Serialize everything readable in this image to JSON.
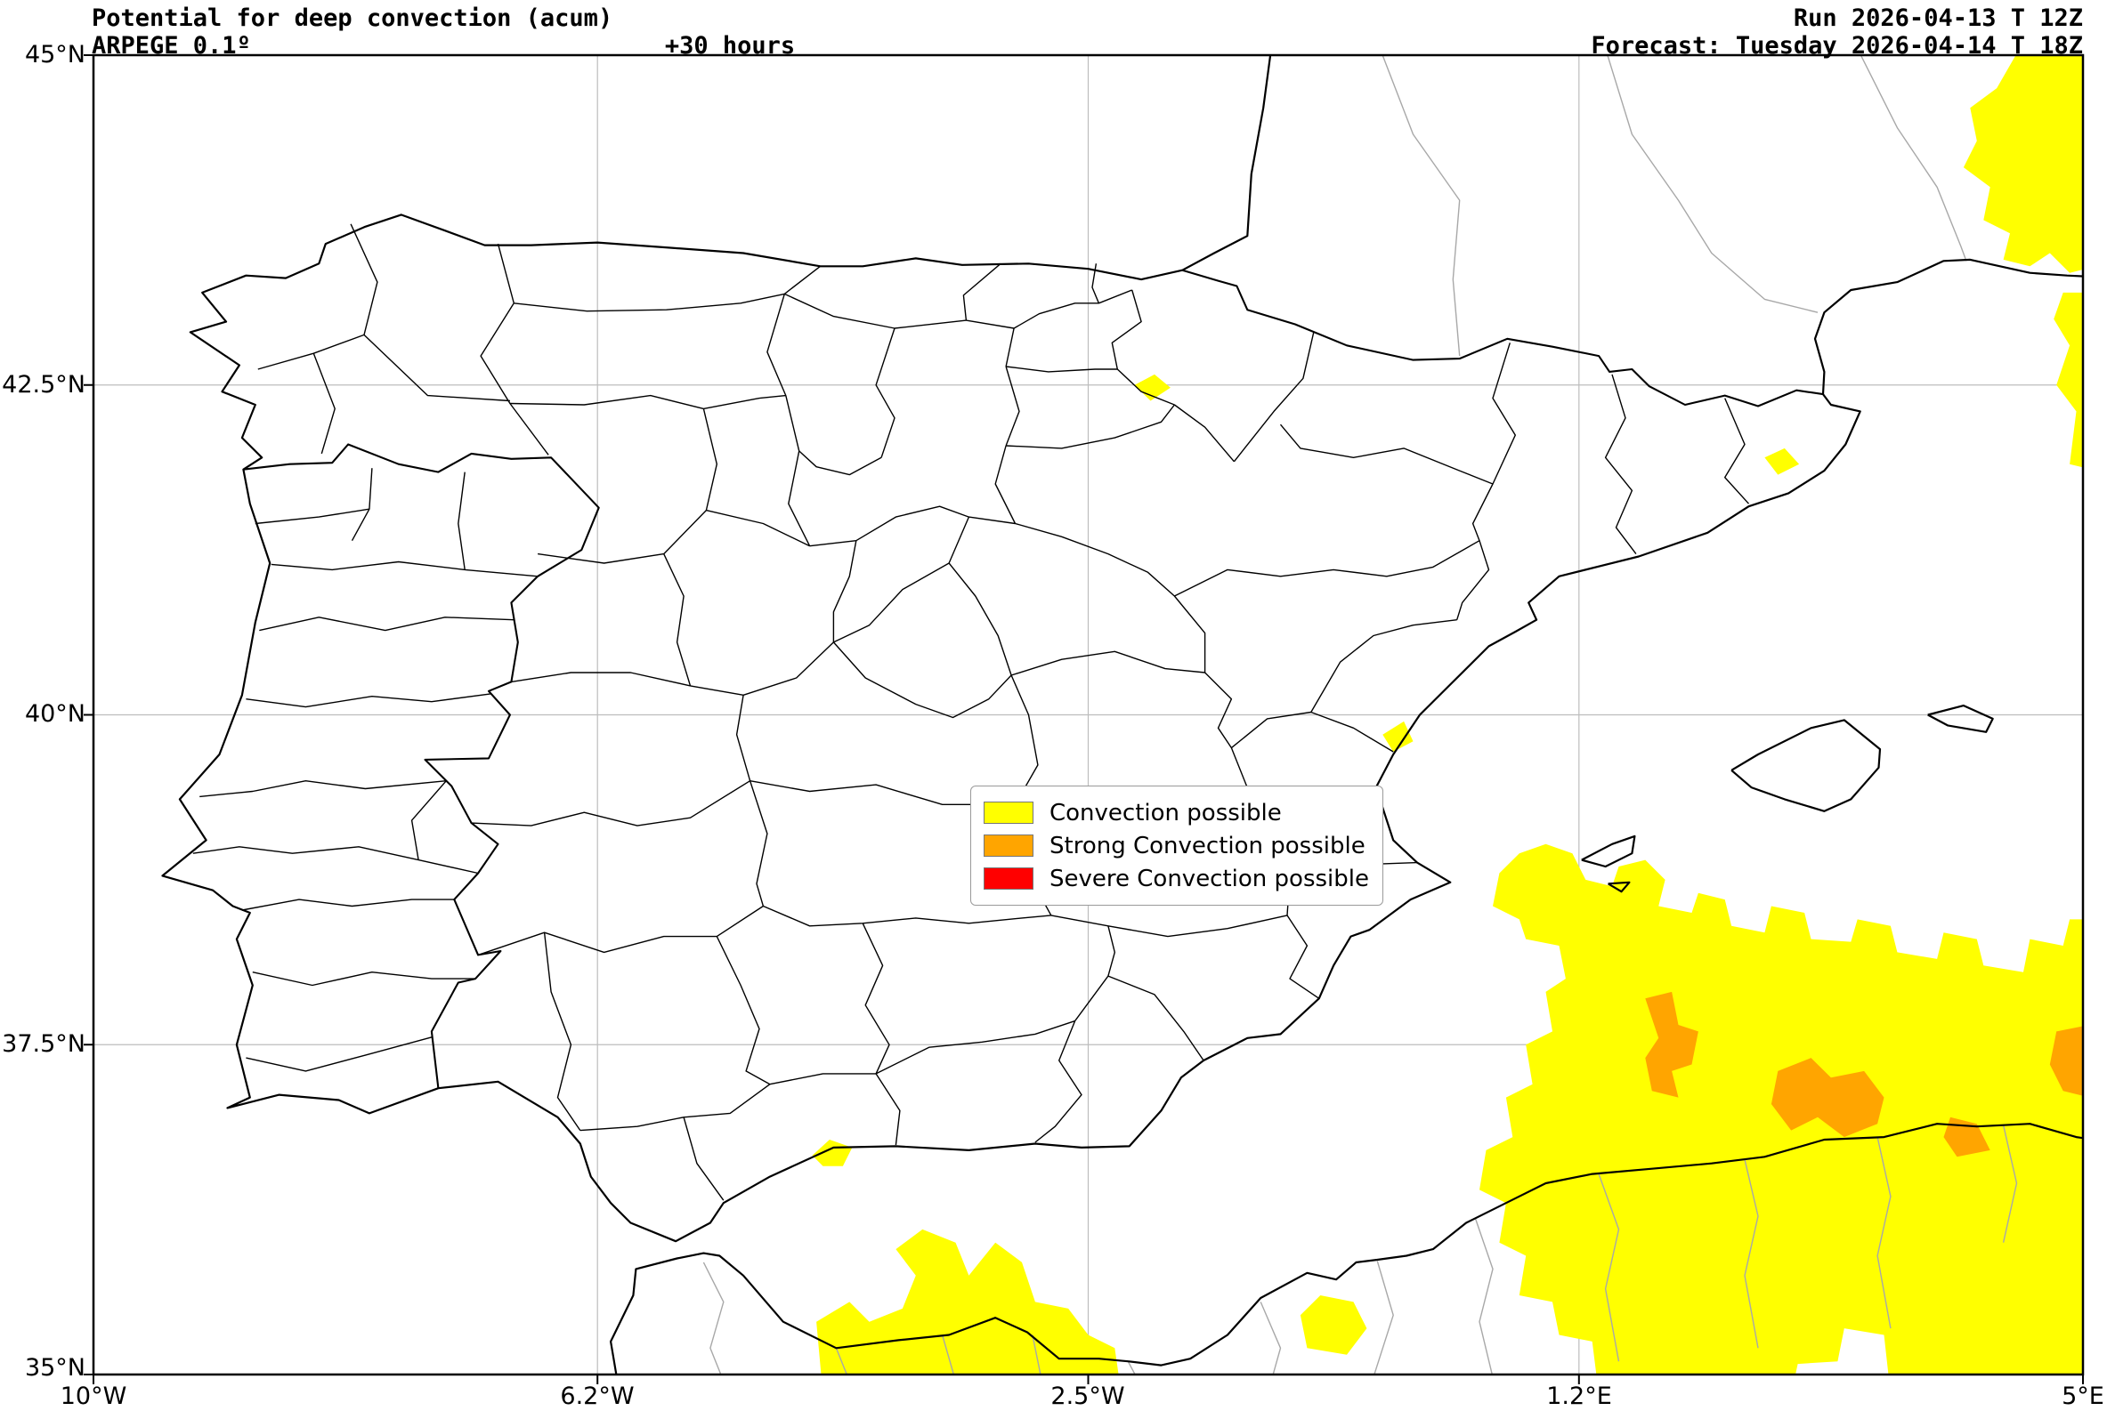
{
  "header": {
    "title_line1": "Potential for deep convection (acum)",
    "title_line2": "ARPEGE 0.1º",
    "lead_time": "+30 hours",
    "run_line": "Run 2026-04-13 T 12Z",
    "forecast_line": "Forecast: Tuesday 2026-04-14 T 18Z"
  },
  "axes": {
    "y_ticks": [
      "45°N",
      "42.5°N",
      "40°N",
      "37.5°N",
      "35°N"
    ],
    "x_ticks": [
      "10°W",
      "6.2°W",
      "2.5°W",
      "1.2°E",
      "5°E"
    ]
  },
  "legend": {
    "items": [
      {
        "label": "Convection possible",
        "color": "#ffff00"
      },
      {
        "label": "Strong Convection possible",
        "color": "#ffa500"
      },
      {
        "label": "Severe Convection possible",
        "color": "#ff0000"
      }
    ]
  },
  "map": {
    "coastline_color": "#000000",
    "province_color": "#000000",
    "secondary_admin_color": "#a8a8a8",
    "grid_color": "#bdbdbd",
    "frame_color": "#000000",
    "sea_color": "#ffffff",
    "land_color": "#ffffff"
  }
}
